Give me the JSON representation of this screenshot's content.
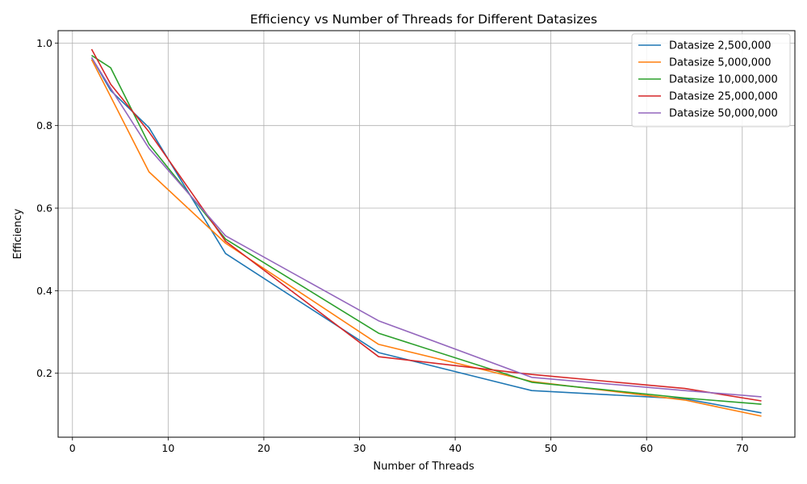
{
  "chart_data": {
    "type": "line",
    "title": "Efficiency vs Number of Threads for Different Datasizes",
    "xlabel": "Number of Threads",
    "ylabel": "Efficiency",
    "xlim": [
      -1.5,
      75.5
    ],
    "ylim": [
      0.045,
      1.03
    ],
    "xticks": [
      0,
      10,
      20,
      30,
      40,
      50,
      60,
      70
    ],
    "yticks": [
      0.2,
      0.4,
      0.6,
      0.8,
      1.0
    ],
    "xtick_labels": [
      "0",
      "10",
      "20",
      "30",
      "40",
      "50",
      "60",
      "70"
    ],
    "ytick_labels": [
      "0.2",
      "0.4",
      "0.6",
      "0.8",
      "1.0"
    ],
    "grid": true,
    "legend_position": "top-right",
    "x": [
      2,
      4,
      8,
      16,
      32,
      48,
      64,
      72
    ],
    "series": [
      {
        "name": "Datasize 2,500,000",
        "color": "#1f77b4",
        "values": [
          0.965,
          0.885,
          0.795,
          0.49,
          0.25,
          0.158,
          0.138,
          0.104
        ]
      },
      {
        "name": "Datasize 5,000,000",
        "color": "#ff7f0e",
        "values": [
          0.96,
          0.87,
          0.688,
          0.515,
          0.27,
          0.18,
          0.135,
          0.096
        ]
      },
      {
        "name": "Datasize 10,000,000",
        "color": "#2ca02c",
        "values": [
          0.97,
          0.94,
          0.755,
          0.525,
          0.297,
          0.178,
          0.14,
          0.125
        ]
      },
      {
        "name": "Datasize 25,000,000",
        "color": "#d62728",
        "values": [
          0.985,
          0.9,
          0.785,
          0.52,
          0.24,
          0.197,
          0.163,
          0.133
        ]
      },
      {
        "name": "Datasize 50,000,000",
        "color": "#9467bd",
        "values": [
          0.965,
          0.89,
          0.745,
          0.533,
          0.327,
          0.19,
          0.158,
          0.143
        ]
      }
    ]
  }
}
